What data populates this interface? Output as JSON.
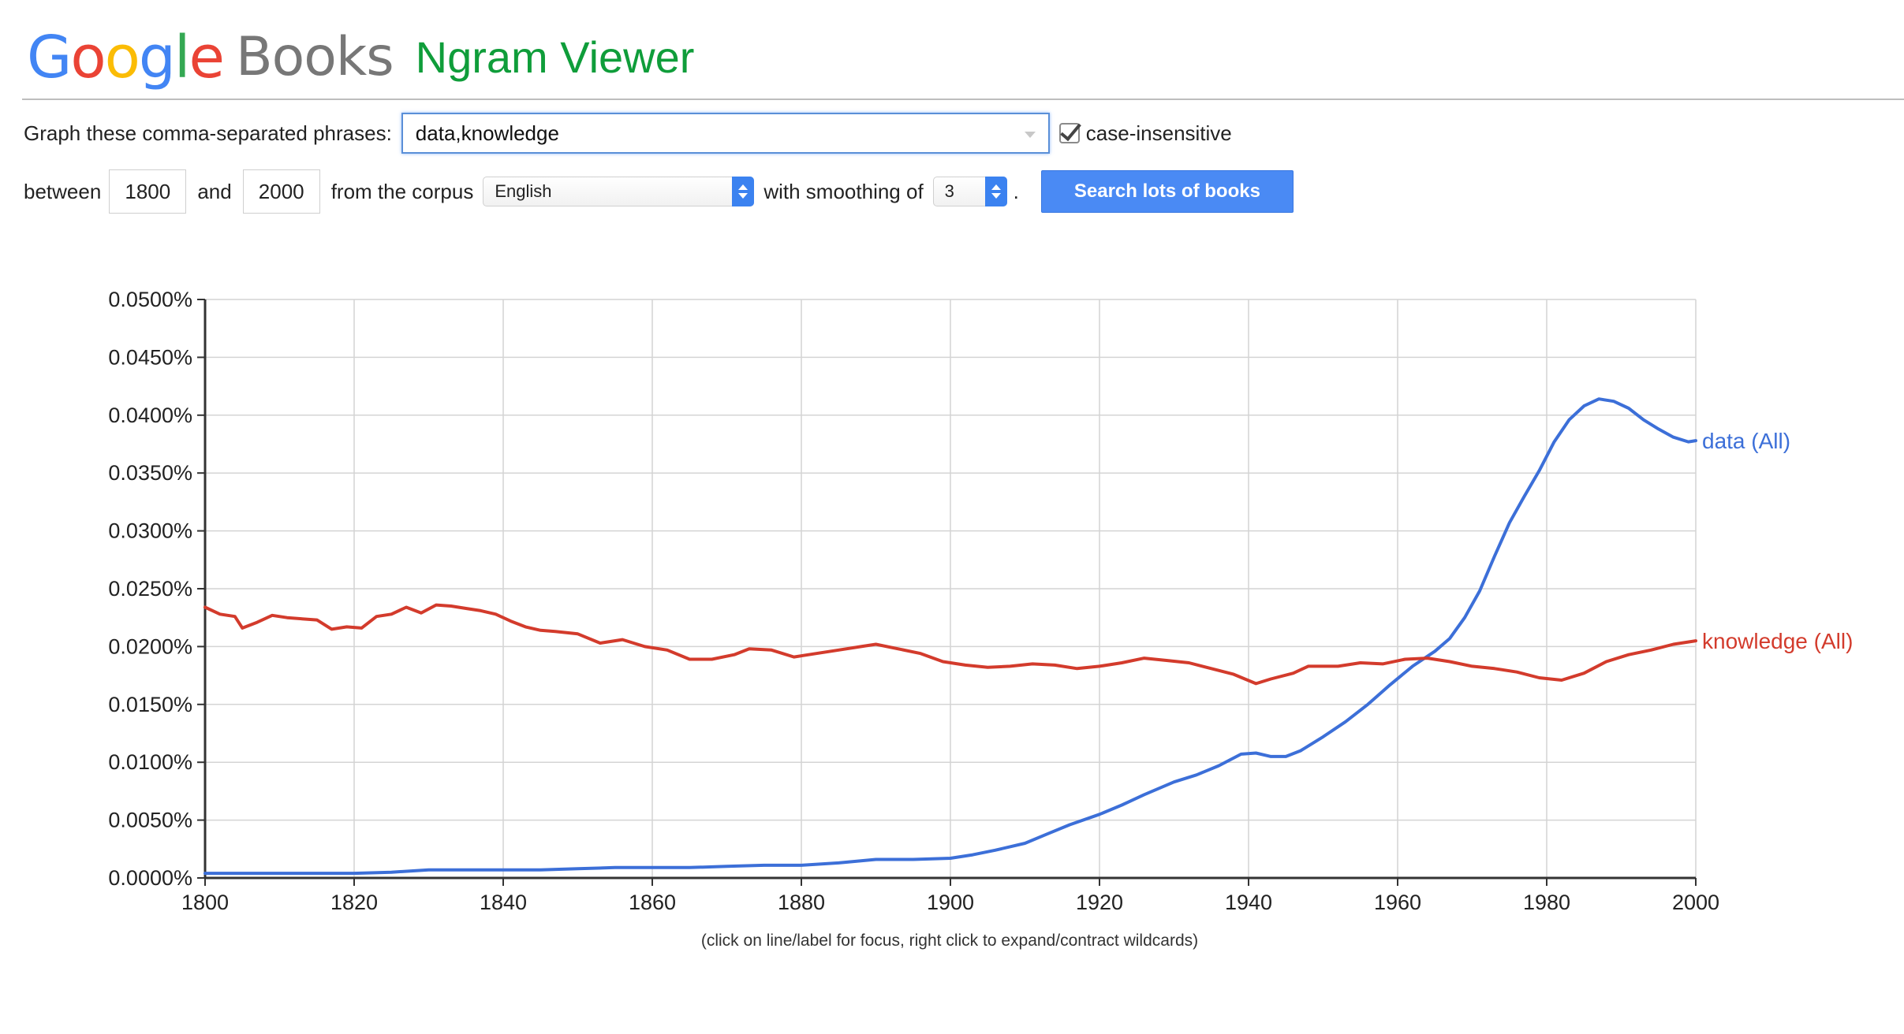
{
  "header": {
    "logo_letters": [
      {
        "ch": "G",
        "color": "#4285F4"
      },
      {
        "ch": "o",
        "color": "#EA4335"
      },
      {
        "ch": "o",
        "color": "#FBBC05"
      },
      {
        "ch": "g",
        "color": "#4285F4"
      },
      {
        "ch": "l",
        "color": "#34A853"
      },
      {
        "ch": "e",
        "color": "#EA4335"
      }
    ],
    "product": "Books",
    "title": "Ngram Viewer"
  },
  "form": {
    "phrases_label": "Graph these comma-separated phrases:",
    "phrases_value": "data,knowledge",
    "case_insensitive_checked": true,
    "case_insensitive_label": "case-insensitive",
    "between_label": "between",
    "year_start": "1800",
    "and_label": "and",
    "year_end": "2000",
    "corpus_label": "from the corpus",
    "corpus_value": "English",
    "smoothing_label": "with smoothing of",
    "smoothing_value": "3",
    "smoothing_suffix": ".",
    "search_button": "Search lots of books"
  },
  "footnote": "(click on line/label for focus, right click to expand/contract wildcards)",
  "chart_data": {
    "type": "line",
    "title": "",
    "xlabel": "",
    "ylabel": "",
    "xlim": [
      1800,
      2000
    ],
    "ylim": [
      0,
      0.05
    ],
    "x_ticks": [
      1800,
      1820,
      1840,
      1860,
      1880,
      1900,
      1920,
      1940,
      1960,
      1980,
      2000
    ],
    "y_ticks": [
      0.0,
      0.005,
      0.01,
      0.015,
      0.02,
      0.025,
      0.03,
      0.035,
      0.04,
      0.045,
      0.05
    ],
    "y_tick_labels": [
      "0.0000%",
      "0.0050%",
      "0.0100%",
      "0.0150%",
      "0.0200%",
      "0.0250%",
      "0.0300%",
      "0.0350%",
      "0.0400%",
      "0.0450%",
      "0.0500%"
    ],
    "x_tick_labels": [
      "1800",
      "1820",
      "1840",
      "1860",
      "1880",
      "1900",
      "1920",
      "1940",
      "1960",
      "1980",
      "2000"
    ],
    "grid": true,
    "legend": "end-of-line labels",
    "series": [
      {
        "name": "data (All)",
        "color": "#3c6fd8",
        "points": [
          [
            1800,
            0.0004
          ],
          [
            1805,
            0.0004
          ],
          [
            1810,
            0.0004
          ],
          [
            1815,
            0.0004
          ],
          [
            1820,
            0.0004
          ],
          [
            1825,
            0.0005
          ],
          [
            1830,
            0.0007
          ],
          [
            1835,
            0.0007
          ],
          [
            1840,
            0.0007
          ],
          [
            1845,
            0.0007
          ],
          [
            1850,
            0.0008
          ],
          [
            1855,
            0.0009
          ],
          [
            1860,
            0.0009
          ],
          [
            1865,
            0.0009
          ],
          [
            1870,
            0.001
          ],
          [
            1875,
            0.0011
          ],
          [
            1880,
            0.0011
          ],
          [
            1885,
            0.0013
          ],
          [
            1890,
            0.0016
          ],
          [
            1895,
            0.0016
          ],
          [
            1900,
            0.0017
          ],
          [
            1903,
            0.002
          ],
          [
            1906,
            0.0024
          ],
          [
            1910,
            0.003
          ],
          [
            1913,
            0.0038
          ],
          [
            1916,
            0.0046
          ],
          [
            1920,
            0.0055
          ],
          [
            1923,
            0.0063
          ],
          [
            1926,
            0.0072
          ],
          [
            1930,
            0.0083
          ],
          [
            1933,
            0.0089
          ],
          [
            1936,
            0.0097
          ],
          [
            1939,
            0.0107
          ],
          [
            1941,
            0.0108
          ],
          [
            1943,
            0.0105
          ],
          [
            1945,
            0.0105
          ],
          [
            1947,
            0.011
          ],
          [
            1950,
            0.0122
          ],
          [
            1953,
            0.0135
          ],
          [
            1956,
            0.015
          ],
          [
            1959,
            0.0167
          ],
          [
            1962,
            0.0183
          ],
          [
            1965,
            0.0196
          ],
          [
            1967,
            0.0207
          ],
          [
            1969,
            0.0225
          ],
          [
            1971,
            0.0248
          ],
          [
            1973,
            0.0278
          ],
          [
            1975,
            0.0307
          ],
          [
            1977,
            0.033
          ],
          [
            1979,
            0.0352
          ],
          [
            1981,
            0.0377
          ],
          [
            1983,
            0.0396
          ],
          [
            1985,
            0.0408
          ],
          [
            1987,
            0.0414
          ],
          [
            1989,
            0.0412
          ],
          [
            1991,
            0.0406
          ],
          [
            1993,
            0.0396
          ],
          [
            1995,
            0.0388
          ],
          [
            1997,
            0.0381
          ],
          [
            1999,
            0.0377
          ],
          [
            2000,
            0.0378
          ]
        ]
      },
      {
        "name": "knowledge (All)",
        "color": "#d33b2c",
        "points": [
          [
            1800,
            0.0234
          ],
          [
            1802,
            0.0228
          ],
          [
            1804,
            0.0226
          ],
          [
            1805,
            0.0216
          ],
          [
            1807,
            0.0221
          ],
          [
            1809,
            0.0227
          ],
          [
            1811,
            0.0225
          ],
          [
            1813,
            0.0224
          ],
          [
            1815,
            0.0223
          ],
          [
            1817,
            0.0215
          ],
          [
            1819,
            0.0217
          ],
          [
            1821,
            0.0216
          ],
          [
            1823,
            0.0226
          ],
          [
            1825,
            0.0228
          ],
          [
            1827,
            0.0234
          ],
          [
            1829,
            0.0229
          ],
          [
            1831,
            0.0236
          ],
          [
            1833,
            0.0235
          ],
          [
            1835,
            0.0233
          ],
          [
            1837,
            0.0231
          ],
          [
            1839,
            0.0228
          ],
          [
            1841,
            0.0222
          ],
          [
            1843,
            0.0217
          ],
          [
            1845,
            0.0214
          ],
          [
            1847,
            0.0213
          ],
          [
            1850,
            0.0211
          ],
          [
            1853,
            0.0203
          ],
          [
            1856,
            0.0206
          ],
          [
            1859,
            0.02
          ],
          [
            1862,
            0.0197
          ],
          [
            1865,
            0.0189
          ],
          [
            1868,
            0.0189
          ],
          [
            1871,
            0.0193
          ],
          [
            1873,
            0.0198
          ],
          [
            1876,
            0.0197
          ],
          [
            1879,
            0.0191
          ],
          [
            1882,
            0.0194
          ],
          [
            1885,
            0.0197
          ],
          [
            1888,
            0.02
          ],
          [
            1890,
            0.0202
          ],
          [
            1893,
            0.0198
          ],
          [
            1896,
            0.0194
          ],
          [
            1899,
            0.0187
          ],
          [
            1902,
            0.0184
          ],
          [
            1905,
            0.0182
          ],
          [
            1908,
            0.0183
          ],
          [
            1911,
            0.0185
          ],
          [
            1914,
            0.0184
          ],
          [
            1917,
            0.0181
          ],
          [
            1920,
            0.0183
          ],
          [
            1923,
            0.0186
          ],
          [
            1926,
            0.019
          ],
          [
            1929,
            0.0188
          ],
          [
            1932,
            0.0186
          ],
          [
            1935,
            0.0181
          ],
          [
            1938,
            0.0176
          ],
          [
            1941,
            0.0168
          ],
          [
            1943,
            0.0172
          ],
          [
            1946,
            0.0177
          ],
          [
            1948,
            0.0183
          ],
          [
            1952,
            0.0183
          ],
          [
            1955,
            0.0186
          ],
          [
            1958,
            0.0185
          ],
          [
            1961,
            0.0189
          ],
          [
            1964,
            0.019
          ],
          [
            1967,
            0.0187
          ],
          [
            1970,
            0.0183
          ],
          [
            1973,
            0.0181
          ],
          [
            1976,
            0.0178
          ],
          [
            1979,
            0.0173
          ],
          [
            1982,
            0.0171
          ],
          [
            1985,
            0.0177
          ],
          [
            1988,
            0.0187
          ],
          [
            1991,
            0.0193
          ],
          [
            1994,
            0.0197
          ],
          [
            1997,
            0.0202
          ],
          [
            2000,
            0.0205
          ]
        ]
      }
    ]
  }
}
